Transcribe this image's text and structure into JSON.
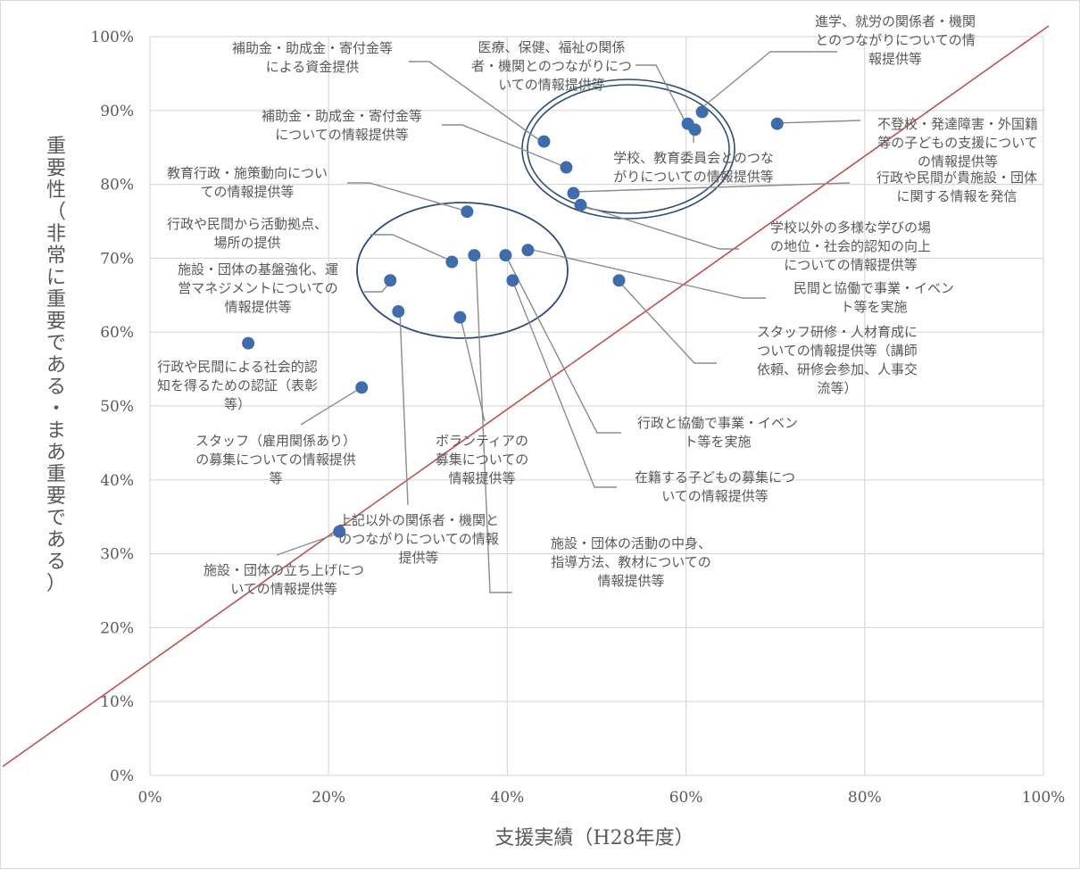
{
  "chart_data": {
    "type": "scatter",
    "title": "",
    "xlabel": "支援実績（H28年度）",
    "ylabel": "重要性（非常に重要である・まあ重要である）",
    "xlim": [
      0,
      100
    ],
    "ylim": [
      0,
      100
    ],
    "x_ticks": [
      "0%",
      "20%",
      "40%",
      "60%",
      "80%",
      "100%"
    ],
    "y_ticks": [
      "0%",
      "10%",
      "20%",
      "30%",
      "40%",
      "50%",
      "60%",
      "70%",
      "80%",
      "90%",
      "100%"
    ],
    "grid": true,
    "marker_color": "#3e6cad",
    "reference_line": {
      "color": "#c0504d",
      "from": [
        -2,
        2
      ],
      "to": [
        100,
        101
      ]
    },
    "points": [
      {
        "x": 61.8,
        "y": 89.8,
        "label": [
          "進学、就労の関係者・機関",
          "とのつながりについての情",
          "報提供等"
        ]
      },
      {
        "x": 60.2,
        "y": 88.2,
        "label": [
          "医療、保健、福祉の関係",
          "者・機関とのつながりにつ",
          "いての情報提供等"
        ]
      },
      {
        "x": 61.0,
        "y": 87.4,
        "label": [
          "学校、教育委員会とのつな",
          "がりについての情報提供等"
        ]
      },
      {
        "x": 70.2,
        "y": 88.2,
        "label": [
          "不登校・発達障害・外国籍",
          "等の子どもの支援について",
          "の情報提供等"
        ]
      },
      {
        "x": 44.1,
        "y": 85.8,
        "label": [
          "補助金・助成金・寄付金等",
          "による資金提供"
        ]
      },
      {
        "x": 46.6,
        "y": 82.3,
        "label": [
          "補助金・助成金・寄付金等",
          "についての情報提供等"
        ]
      },
      {
        "x": 47.4,
        "y": 78.8,
        "label": [
          "行政や民間が貴施設・団体",
          "に関する情報を発信"
        ]
      },
      {
        "x": 48.2,
        "y": 77.2,
        "label": [
          "学校以外の多様な学びの場",
          "の地位・社会的認知の向上",
          "についての情報提供等"
        ]
      },
      {
        "x": 35.5,
        "y": 76.3,
        "label": [
          "教育行政・施策動向につい",
          "ての情報提供等"
        ]
      },
      {
        "x": 33.8,
        "y": 69.5,
        "label": [
          "行政や民間から活動拠点、",
          "場所の提供"
        ]
      },
      {
        "x": 36.3,
        "y": 70.4,
        "label": [
          "施設・団体の活動の中身、",
          "指導方法、教材についての",
          "情報提供等"
        ]
      },
      {
        "x": 39.8,
        "y": 70.4,
        "label": [
          "行政と協働で事業・イベン",
          "ト等を実施"
        ]
      },
      {
        "x": 42.3,
        "y": 71.1,
        "label": [
          "民間と協働で事業・イベン",
          "ト等を実施"
        ]
      },
      {
        "x": 40.6,
        "y": 67.0,
        "label": [
          "在籍する子どもの募集につ",
          "いての情報提供等"
        ]
      },
      {
        "x": 26.9,
        "y": 67.0,
        "label": [
          "施設・団体の基盤強化、運",
          "営マネジメントについての",
          "情報提供等"
        ]
      },
      {
        "x": 52.5,
        "y": 67.0,
        "label": [
          "スタッフ研修・人材育成に",
          "ついての情報提供等（講師",
          "依頼、研修会参加、人事交",
          "流等）"
        ]
      },
      {
        "x": 27.8,
        "y": 62.8,
        "label": [
          "上記以外の関係者・機関と",
          "のつながりについての情報",
          "提供等"
        ]
      },
      {
        "x": 34.7,
        "y": 62.0,
        "label": [
          "ボランティアの",
          "募集についての",
          "情報提供等"
        ]
      },
      {
        "x": 11.0,
        "y": 58.5,
        "label": [
          "行政や民間による社会的認",
          "知を得るための認証（表彰",
          "等）"
        ]
      },
      {
        "x": 23.7,
        "y": 52.5,
        "label": [
          "スタッフ（雇用関係あり）",
          "の募集についての情報提供",
          "等"
        ]
      },
      {
        "x": 21.2,
        "y": 33.0,
        "label": [
          "施設・団体の立ち上げにつ",
          "いての情報提供等"
        ]
      }
    ],
    "circled_groups": [
      {
        "members": [
          26.9,
          42.3
        ],
        "style": "single"
      },
      {
        "members": [
          44.1,
          70.2
        ],
        "style": "double"
      }
    ]
  }
}
